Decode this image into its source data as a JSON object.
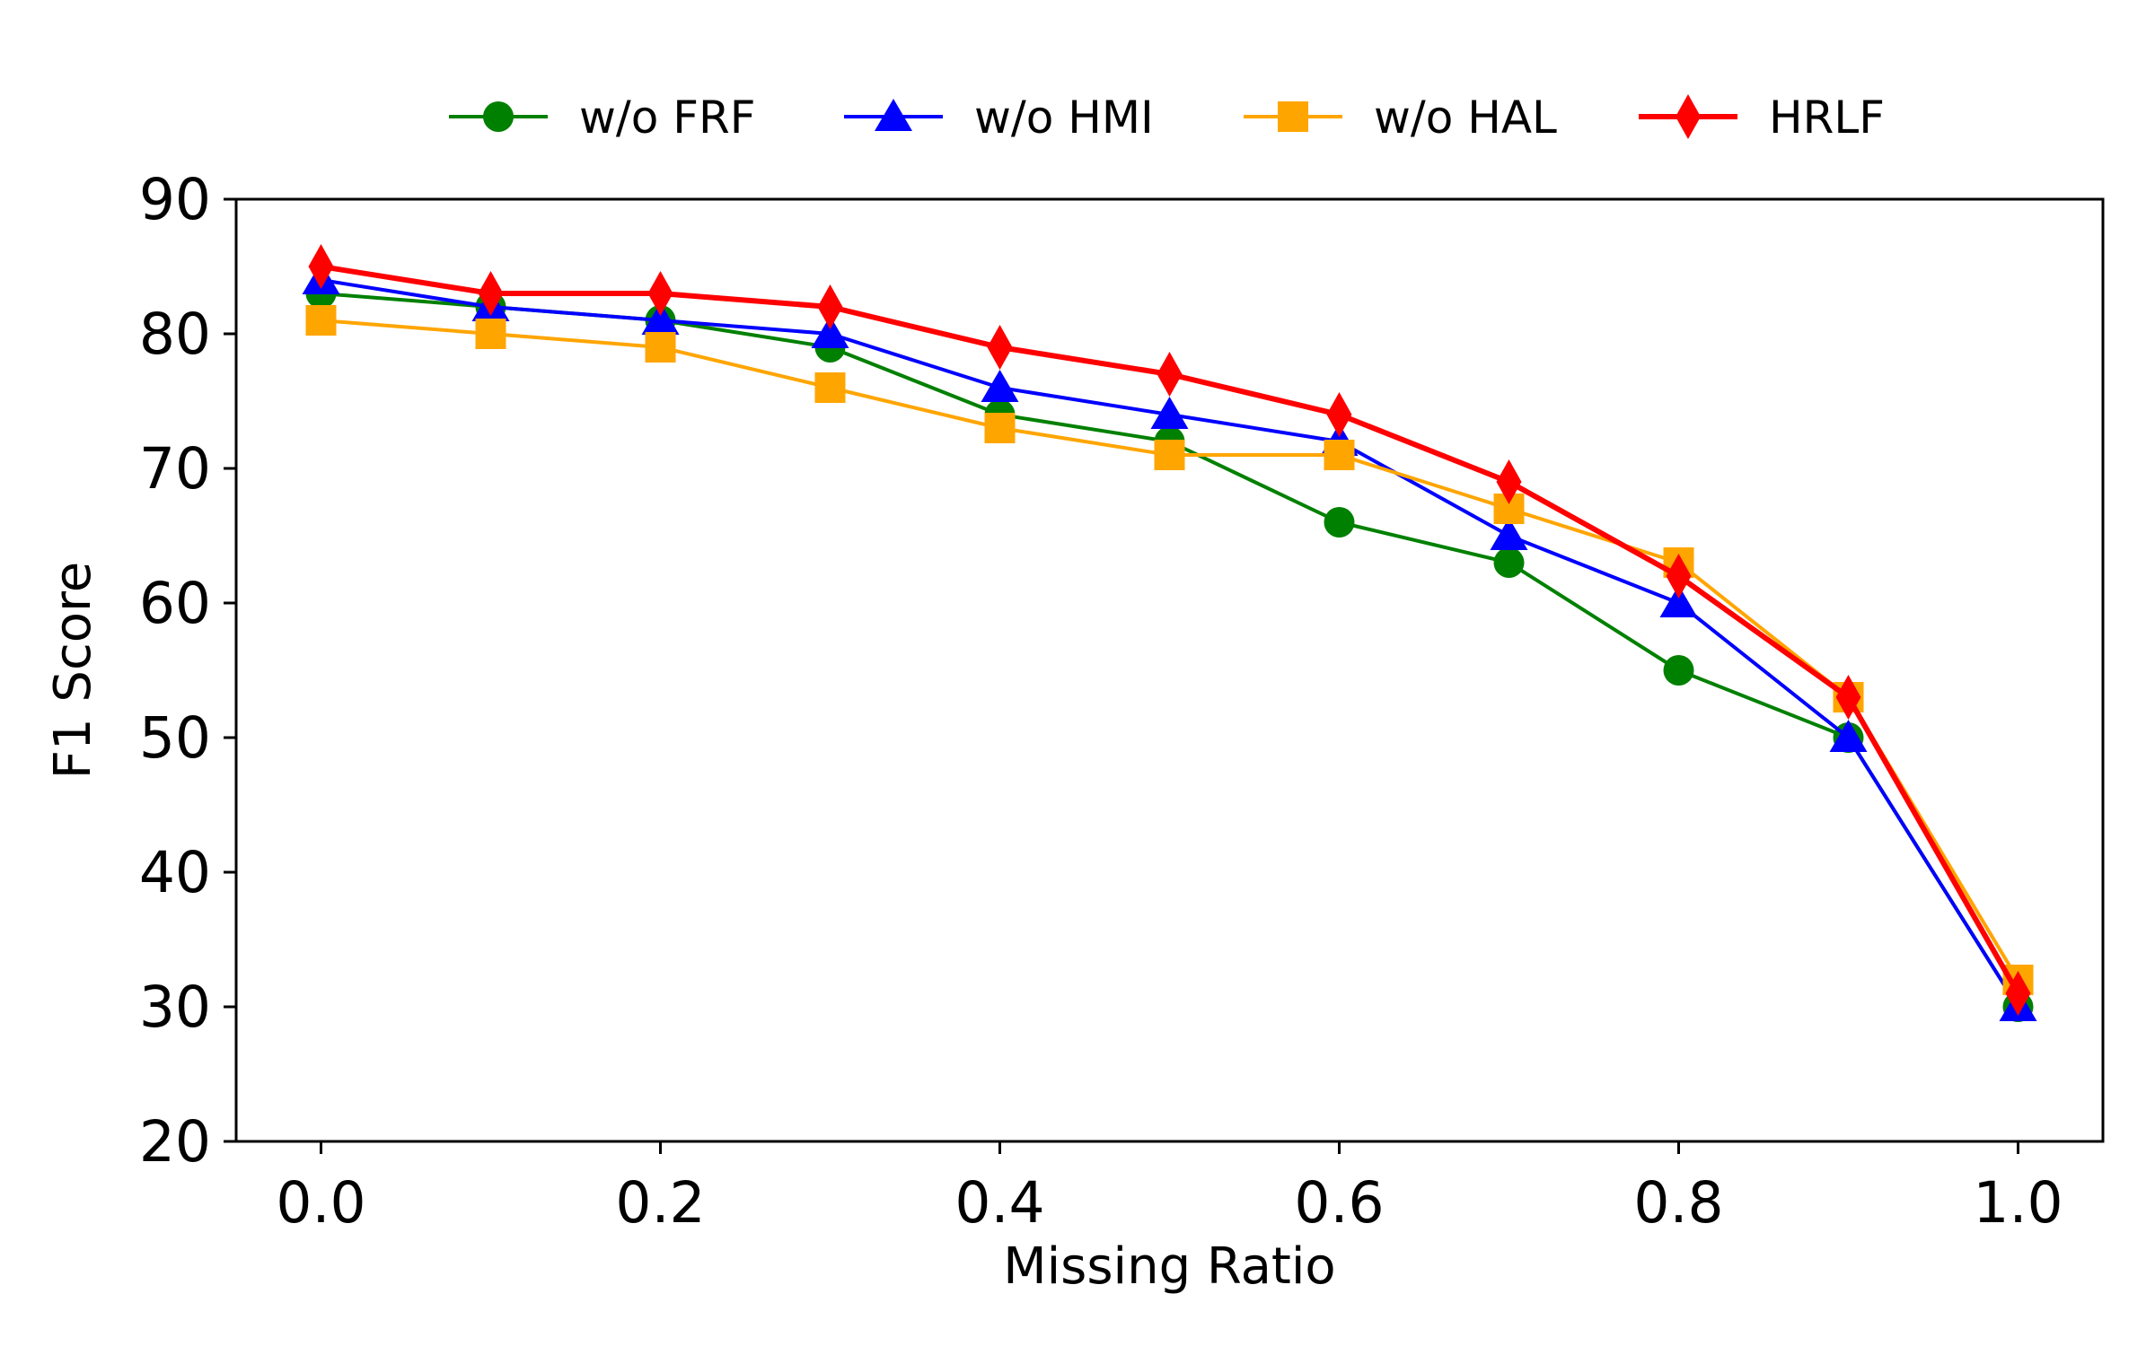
{
  "chart_data": {
    "type": "line",
    "title": "",
    "xlabel": "Missing Ratio",
    "ylabel": "F1 Score",
    "xlim": [
      -0.05,
      1.05
    ],
    "ylim": [
      20,
      90
    ],
    "x_ticks": [
      "0.0",
      "0.2",
      "0.4",
      "0.6",
      "0.8",
      "1.0"
    ],
    "x_tick_values": [
      0.0,
      0.2,
      0.4,
      0.6,
      0.8,
      1.0
    ],
    "y_ticks": [
      "20",
      "30",
      "40",
      "50",
      "60",
      "70",
      "80",
      "90"
    ],
    "y_tick_values": [
      20,
      30,
      40,
      50,
      60,
      70,
      80,
      90
    ],
    "grid": false,
    "legend_position": "top-center, outside plot",
    "x": [
      0.0,
      0.1,
      0.2,
      0.3,
      0.4,
      0.5,
      0.6,
      0.7,
      0.8,
      0.9,
      1.0
    ],
    "series": [
      {
        "name": "w/o FRF",
        "color": "#008000",
        "marker": "circle",
        "values": [
          83,
          82,
          81,
          79,
          74,
          72,
          66,
          63,
          55,
          50,
          30
        ]
      },
      {
        "name": "w/o HMI",
        "color": "#0000ff",
        "marker": "triangle",
        "values": [
          84,
          82,
          81,
          80,
          76,
          74,
          72,
          65,
          60,
          50,
          30
        ]
      },
      {
        "name": "w/o HAL",
        "color": "#ffa500",
        "marker": "square",
        "values": [
          81,
          80,
          79,
          76,
          73,
          71,
          71,
          67,
          63,
          53,
          32
        ]
      },
      {
        "name": "HRLF",
        "color": "#ff0000",
        "marker": "diamond",
        "values": [
          85,
          83,
          83,
          82,
          79,
          77,
          74,
          69,
          62,
          53,
          31
        ]
      }
    ]
  }
}
